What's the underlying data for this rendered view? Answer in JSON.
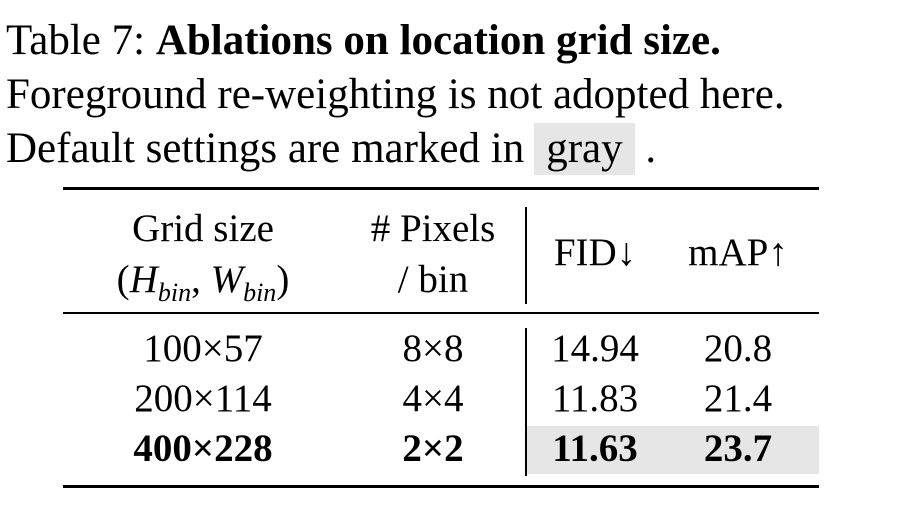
{
  "caption": {
    "label": "Table 7:",
    "title": "Ablations on location grid size.",
    "line2": "Foreground re-weighting is not adopted here.",
    "line3_prefix": "Default settings are marked in",
    "gray_word": "gray",
    "line3_suffix": "."
  },
  "table": {
    "headers": {
      "grid_size": "Grid size",
      "grid_math_H": "H",
      "grid_math_sub": "bin",
      "grid_math_W": "W",
      "pixels_line1": "# Pixels",
      "pixels_line2": "/ bin",
      "fid": "FID↓",
      "map": "mAP↑"
    },
    "rows": [
      {
        "grid": "100×57",
        "pixels": "8×8",
        "fid": "14.94",
        "map": "20.8",
        "default": false
      },
      {
        "grid": "200×114",
        "pixels": "4×4",
        "fid": "11.83",
        "map": "21.4",
        "default": false
      },
      {
        "grid": "400×228",
        "pixels": "2×2",
        "fid": "11.63",
        "map": "23.7",
        "default": true
      }
    ],
    "highlight_color": "#e6e6e6"
  }
}
